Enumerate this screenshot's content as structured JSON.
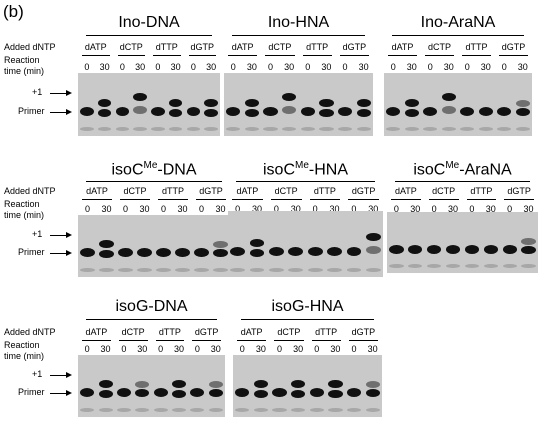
{
  "panel_label": "(b)",
  "row_labels": {
    "added_dntp": "Added dNTP",
    "reaction_time_line1": "Reaction",
    "reaction_time_line2": "time (min)"
  },
  "dntp_labels": [
    "dATP",
    "dCTP",
    "dTTP",
    "dGTP"
  ],
  "time_labels": [
    "0",
    "30"
  ],
  "marker_labels": {
    "plus_one": "+1",
    "primer": "Primer"
  },
  "gels": [
    {
      "title_main": "Ino-DNA",
      "title_sup": "",
      "title_rest": ""
    },
    {
      "title_main": "Ino-HNA",
      "title_sup": "",
      "title_rest": ""
    },
    {
      "title_main": "Ino-AraNA",
      "title_sup": "",
      "title_rest": ""
    },
    {
      "title_main": "isoC",
      "title_sup": "Me",
      "title_rest": "-DNA"
    },
    {
      "title_main": "isoC",
      "title_sup": "Me",
      "title_rest": "-HNA"
    },
    {
      "title_main": "isoC",
      "title_sup": "Me",
      "title_rest": "-AraNA"
    },
    {
      "title_main": "isoG-DNA",
      "title_sup": "",
      "title_rest": ""
    },
    {
      "title_main": "isoG-HNA",
      "title_sup": "",
      "title_rest": ""
    }
  ]
}
